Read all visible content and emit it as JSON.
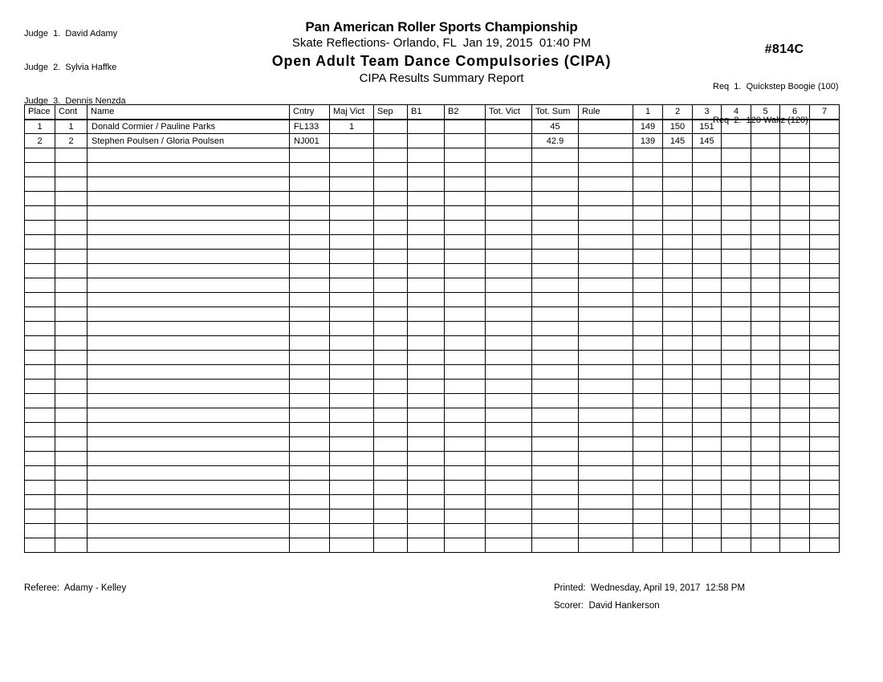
{
  "report": {
    "judges": [
      "Judge  1.  David Adamy",
      "Judge  2.  Sylvia Haffke",
      "Judge  3.  Dennis Nenzda"
    ],
    "title": "Pan American Roller Sports Championship",
    "venue_line": "Skate Reflections- Orlando, FL  Jan 19, 2015  01:40 PM",
    "event_title": "Open Adult Team Dance Compulsories (CIPA)",
    "report_title": "CIPA Results Summary Report",
    "event_number": "#814C",
    "requirements": [
      "Req  1.  Quickstep Boogie (100)",
      "Req  2.  120 Waltz (120)"
    ]
  },
  "table": {
    "columns": [
      "Place",
      "Cont",
      "Name",
      "Cntry",
      "Maj Vict",
      "Sep",
      "B1",
      "B2",
      "Tot. Vict",
      "Tot. Sum",
      "Rule",
      "1",
      "2",
      "3",
      "4",
      "5",
      "6",
      "7"
    ],
    "rows": [
      [
        "1",
        "1",
        "Donald Cormier / Pauline Parks",
        "FL133",
        "1",
        "",
        "",
        "",
        "",
        "45",
        "",
        "149",
        "150",
        "151",
        "",
        "",
        "",
        ""
      ],
      [
        "2",
        "2",
        "Stephen Poulsen / Gloria Poulsen",
        "NJ001",
        "",
        "",
        "",
        "",
        "",
        "42.9",
        "",
        "139",
        "145",
        "145",
        "",
        "",
        "",
        ""
      ]
    ],
    "empty_row_count": 28
  },
  "footer": {
    "referee": "Referee:  Adamy - Kelley",
    "printed": "Printed:  Wednesday, April 19, 2017  12:58 PM",
    "scorer": "Scorer:  David Hankerson"
  },
  "colors": {
    "text": "#000000",
    "background": "#ffffff",
    "border": "#000000"
  }
}
